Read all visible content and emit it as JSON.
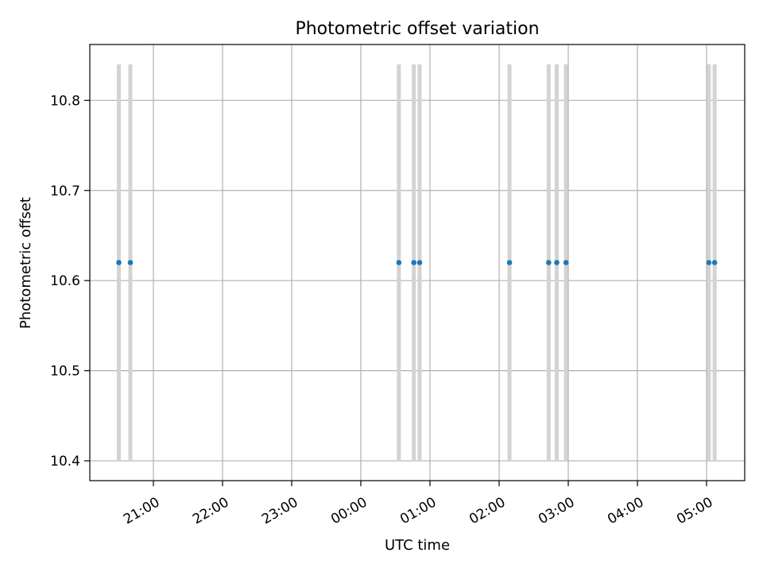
{
  "chart_data": {
    "type": "scatter",
    "title": "Photometric offset variation",
    "xlabel": "UTC time",
    "ylabel": "Photometric offset",
    "x_ticks": [
      "21:00",
      "22:00",
      "23:00",
      "00:00",
      "01:00",
      "02:00",
      "03:00",
      "04:00",
      "05:00"
    ],
    "y_ticks": [
      "10.4",
      "10.5",
      "10.6",
      "10.7",
      "10.8"
    ],
    "ylim": [
      10.378,
      10.862
    ],
    "grid": true,
    "series": [
      {
        "x": [
          "20:30",
          "20:40",
          "00:33",
          "00:46",
          "00:51",
          "02:09",
          "02:43",
          "02:50",
          "02:58",
          "05:02",
          "05:07"
        ],
        "y": [
          10.62,
          10.62,
          10.62,
          10.62,
          10.62,
          10.62,
          10.62,
          10.62,
          10.62,
          10.62,
          10.62
        ],
        "color": "#1f77b4"
      }
    ],
    "vertical_bands": {
      "ymin": 10.4,
      "ymax": 10.84,
      "color": "#d3d3d3"
    }
  }
}
